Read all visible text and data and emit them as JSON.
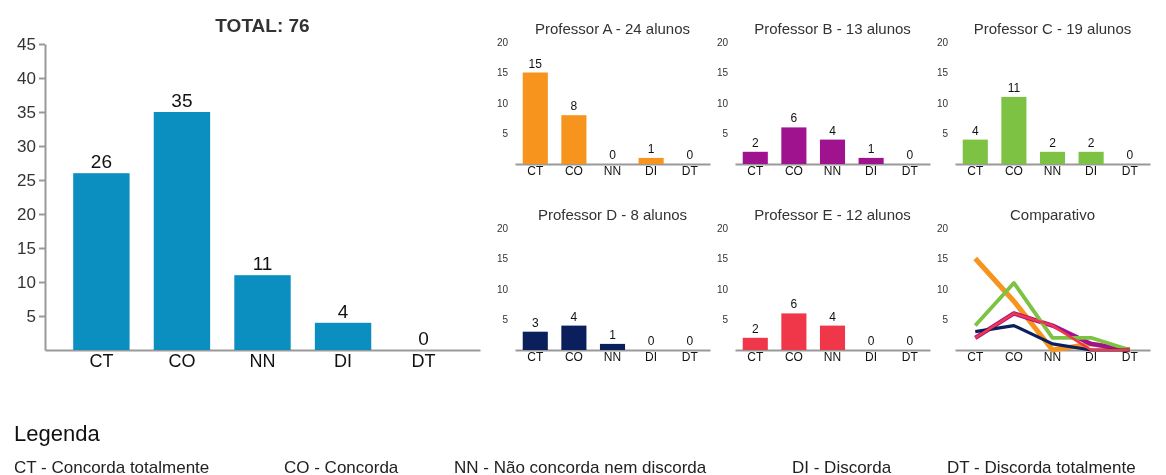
{
  "chart_data": [
    {
      "type": "bar",
      "title": "TOTAL: 76",
      "categories": [
        "CT",
        "CO",
        "NN",
        "DI",
        "DT"
      ],
      "values": [
        26,
        35,
        11,
        4,
        0
      ],
      "color": "#0a8fc0",
      "ylim": [
        0,
        45
      ],
      "yticks": [
        5,
        10,
        15,
        20,
        25,
        30,
        35,
        40,
        45
      ],
      "data_labels": true
    },
    {
      "type": "bar",
      "title": "Professor A - 24 alunos",
      "categories": [
        "CT",
        "CO",
        "NN",
        "DI",
        "DT"
      ],
      "values": [
        15,
        8,
        0,
        1,
        0
      ],
      "color": "#f7941d",
      "ylim": [
        0,
        20
      ],
      "yticks": [
        5,
        10,
        15,
        20
      ],
      "data_labels": true
    },
    {
      "type": "bar",
      "title": "Professor B - 13 alunos",
      "categories": [
        "CT",
        "CO",
        "NN",
        "DI",
        "DT"
      ],
      "values": [
        2,
        6,
        4,
        1,
        0
      ],
      "color": "#a0138e",
      "ylim": [
        0,
        20
      ],
      "yticks": [
        5,
        10,
        15,
        20
      ],
      "data_labels": true
    },
    {
      "type": "bar",
      "title": "Professor C - 19 alunos",
      "categories": [
        "CT",
        "CO",
        "NN",
        "DI",
        "DT"
      ],
      "values": [
        4,
        11,
        2,
        2,
        0
      ],
      "color": "#7dc242",
      "ylim": [
        0,
        20
      ],
      "yticks": [
        5,
        10,
        15,
        20
      ],
      "data_labels": true
    },
    {
      "type": "bar",
      "title": "Professor D - 8 alunos",
      "categories": [
        "CT",
        "CO",
        "NN",
        "DI",
        "DT"
      ],
      "values": [
        3,
        4,
        1,
        0,
        0
      ],
      "color": "#0a1f5c",
      "ylim": [
        0,
        20
      ],
      "yticks": [
        5,
        10,
        15,
        20
      ],
      "data_labels": true
    },
    {
      "type": "bar",
      "title": "Professor E - 12 alunos",
      "categories": [
        "CT",
        "CO",
        "NN",
        "DI",
        "DT"
      ],
      "values": [
        2,
        6,
        4,
        0,
        0
      ],
      "color": "#f0374a",
      "ylim": [
        0,
        20
      ],
      "yticks": [
        5,
        10,
        15,
        20
      ],
      "data_labels": true
    },
    {
      "type": "line",
      "title": "Comparativo",
      "categories": [
        "CT",
        "CO",
        "NN",
        "DI",
        "DT"
      ],
      "ylim": [
        0,
        20
      ],
      "yticks": [
        5,
        10,
        15,
        20
      ],
      "marker": "none",
      "line_style": "solid",
      "series": [
        {
          "color": "#f7941d",
          "values": [
            15,
            8,
            0,
            1,
            0
          ]
        },
        {
          "color": "#a0138e",
          "values": [
            2,
            6,
            4,
            1,
            0
          ]
        },
        {
          "color": "#7dc242",
          "values": [
            4,
            11,
            2,
            2,
            0
          ]
        },
        {
          "color": "#0a1f5c",
          "values": [
            3,
            4,
            1,
            0,
            0
          ]
        },
        {
          "color": "#f0374a",
          "values": [
            2,
            6,
            4,
            0,
            0
          ]
        }
      ]
    },
    {
      "type": "other",
      "title": "Legenda",
      "annotations": [
        "CT - Concorda totalmente",
        "CO - Concorda",
        "NN - Não concorda nem discorda",
        "DI - Discorda",
        "DT - Discorda totalmente"
      ]
    }
  ]
}
